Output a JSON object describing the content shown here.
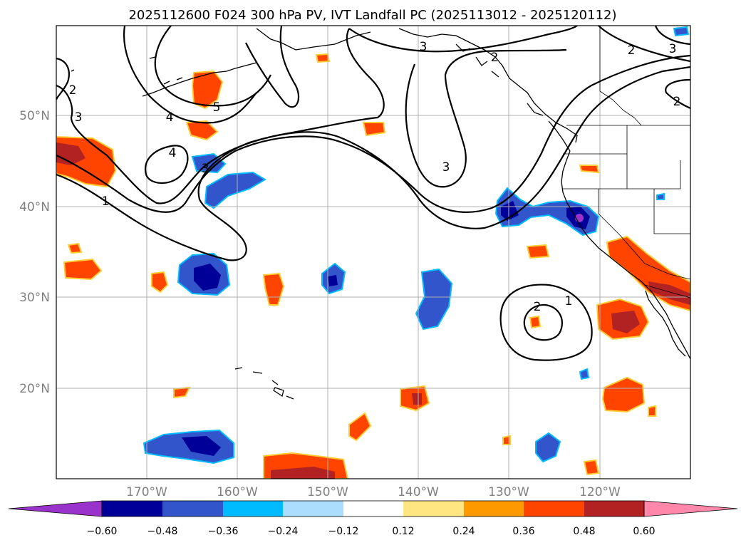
{
  "title": "2025112600 F024 300 hPa PV, IVT Landfall PC (2025113012 - 2025120112)",
  "map": {
    "lon_labels": [
      "170°W",
      "160°W",
      "150°W",
      "140°W",
      "130°W",
      "120°W"
    ],
    "lat_labels": [
      "50°N",
      "40°N",
      "30°N",
      "20°N"
    ],
    "pv_contour_labels": [
      "2",
      "3",
      "3",
      "2",
      "2",
      "3",
      "2",
      "4",
      "5",
      "4",
      "3",
      "3",
      "1",
      "2",
      "1"
    ]
  },
  "colorbar": {
    "tick_labels": [
      "−0.60",
      "−0.48",
      "−0.36",
      "−0.24",
      "−0.12",
      "0.12",
      "0.24",
      "0.36",
      "0.48",
      "0.60"
    ],
    "colors": [
      "#9933cc",
      "#000099",
      "#3355cc",
      "#00bbff",
      "#aaddff",
      "#ffffff",
      "#ffe680",
      "#ff9900",
      "#ff4400",
      "#b22222",
      "#ff88aa"
    ]
  },
  "colors": {
    "neg_dark": "#000099",
    "neg_mid": "#3355cc",
    "neg_light": "#00bbff",
    "neg_purple": "#9933cc",
    "pos_light": "#ffcc33",
    "pos_mid": "#ff4400",
    "pos_dark": "#b22222",
    "grid": "#b0b0b0"
  }
}
